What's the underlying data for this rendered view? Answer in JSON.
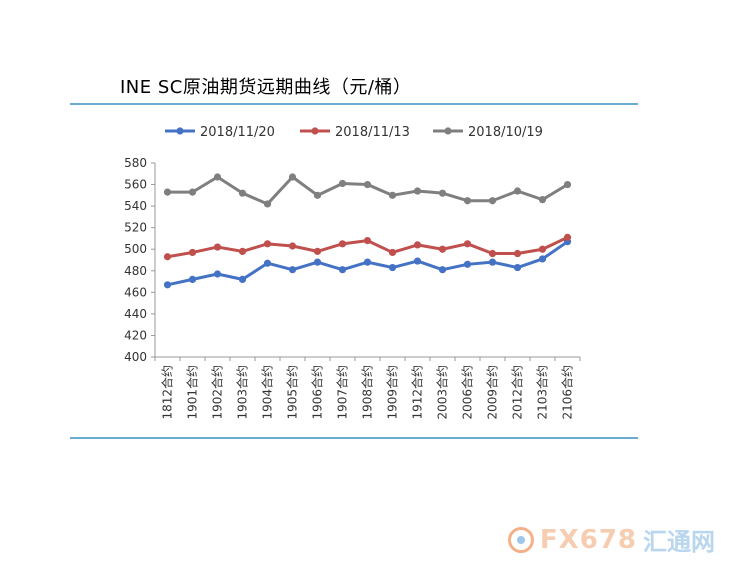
{
  "chart_data": {
    "type": "line",
    "title": "INE SC原油期货远期曲线（元/桶）",
    "categories": [
      "1812合约",
      "1901合约",
      "1902合约",
      "1903合约",
      "1904合约",
      "1905合约",
      "1906合约",
      "1907合约",
      "1908合约",
      "1909合约",
      "1912合约",
      "2003合约",
      "2006合约",
      "2009合约",
      "2012合约",
      "2103合约",
      "2106合约"
    ],
    "series": [
      {
        "name": "2018/11/20",
        "color": "#4472c4",
        "values": [
          467,
          472,
          477,
          472,
          487,
          481,
          488,
          481,
          488,
          483,
          489,
          481,
          486,
          488,
          483,
          491,
          507
        ]
      },
      {
        "name": "2018/11/13",
        "color": "#c0504d",
        "values": [
          493,
          497,
          502,
          498,
          505,
          503,
          498,
          505,
          508,
          497,
          504,
          500,
          505,
          496,
          496,
          500,
          511
        ]
      },
      {
        "name": "2018/10/19",
        "color": "#7f7f7f",
        "values": [
          553,
          553,
          567,
          552,
          542,
          567,
          550,
          561,
          560,
          550,
          554,
          552,
          545,
          545,
          554,
          546,
          560
        ]
      }
    ],
    "ylim": [
      400,
      580
    ],
    "yticks": [
      400,
      420,
      440,
      460,
      480,
      500,
      520,
      540,
      560,
      580
    ],
    "grid": false,
    "legend": "top"
  },
  "watermark": {
    "logo_icon": "fx678-logo-icon",
    "text": "FX678",
    "text2": "汇通网"
  }
}
